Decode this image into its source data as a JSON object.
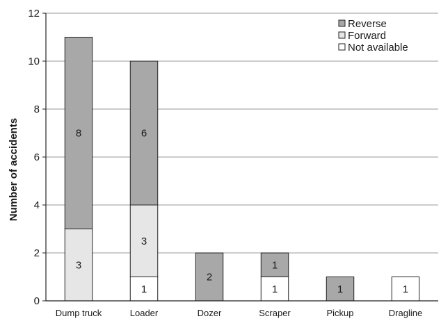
{
  "chart_data": {
    "type": "bar",
    "stacked": true,
    "categories": [
      "Dump truck",
      "Loader",
      "Dozer",
      "Scraper",
      "Pickup",
      "Dragline"
    ],
    "series": [
      {
        "name": "Not available",
        "values": [
          0,
          1,
          0,
          1,
          0,
          1
        ],
        "color": "#ffffff"
      },
      {
        "name": "Forward",
        "values": [
          3,
          3,
          0,
          0,
          0,
          0
        ],
        "color": "#e6e6e6"
      },
      {
        "name": "Reverse",
        "values": [
          8,
          6,
          2,
          1,
          1,
          0
        ],
        "color": "#a8a8a8"
      }
    ],
    "legend_order": [
      "Reverse",
      "Forward",
      "Not available"
    ],
    "legend_position": "top-right",
    "title": "",
    "xlabel": "",
    "ylabel": "Number of accidents",
    "ylim": [
      0,
      12
    ],
    "yticks": [
      0,
      2,
      4,
      6,
      8,
      10,
      12
    ],
    "grid": true
  }
}
